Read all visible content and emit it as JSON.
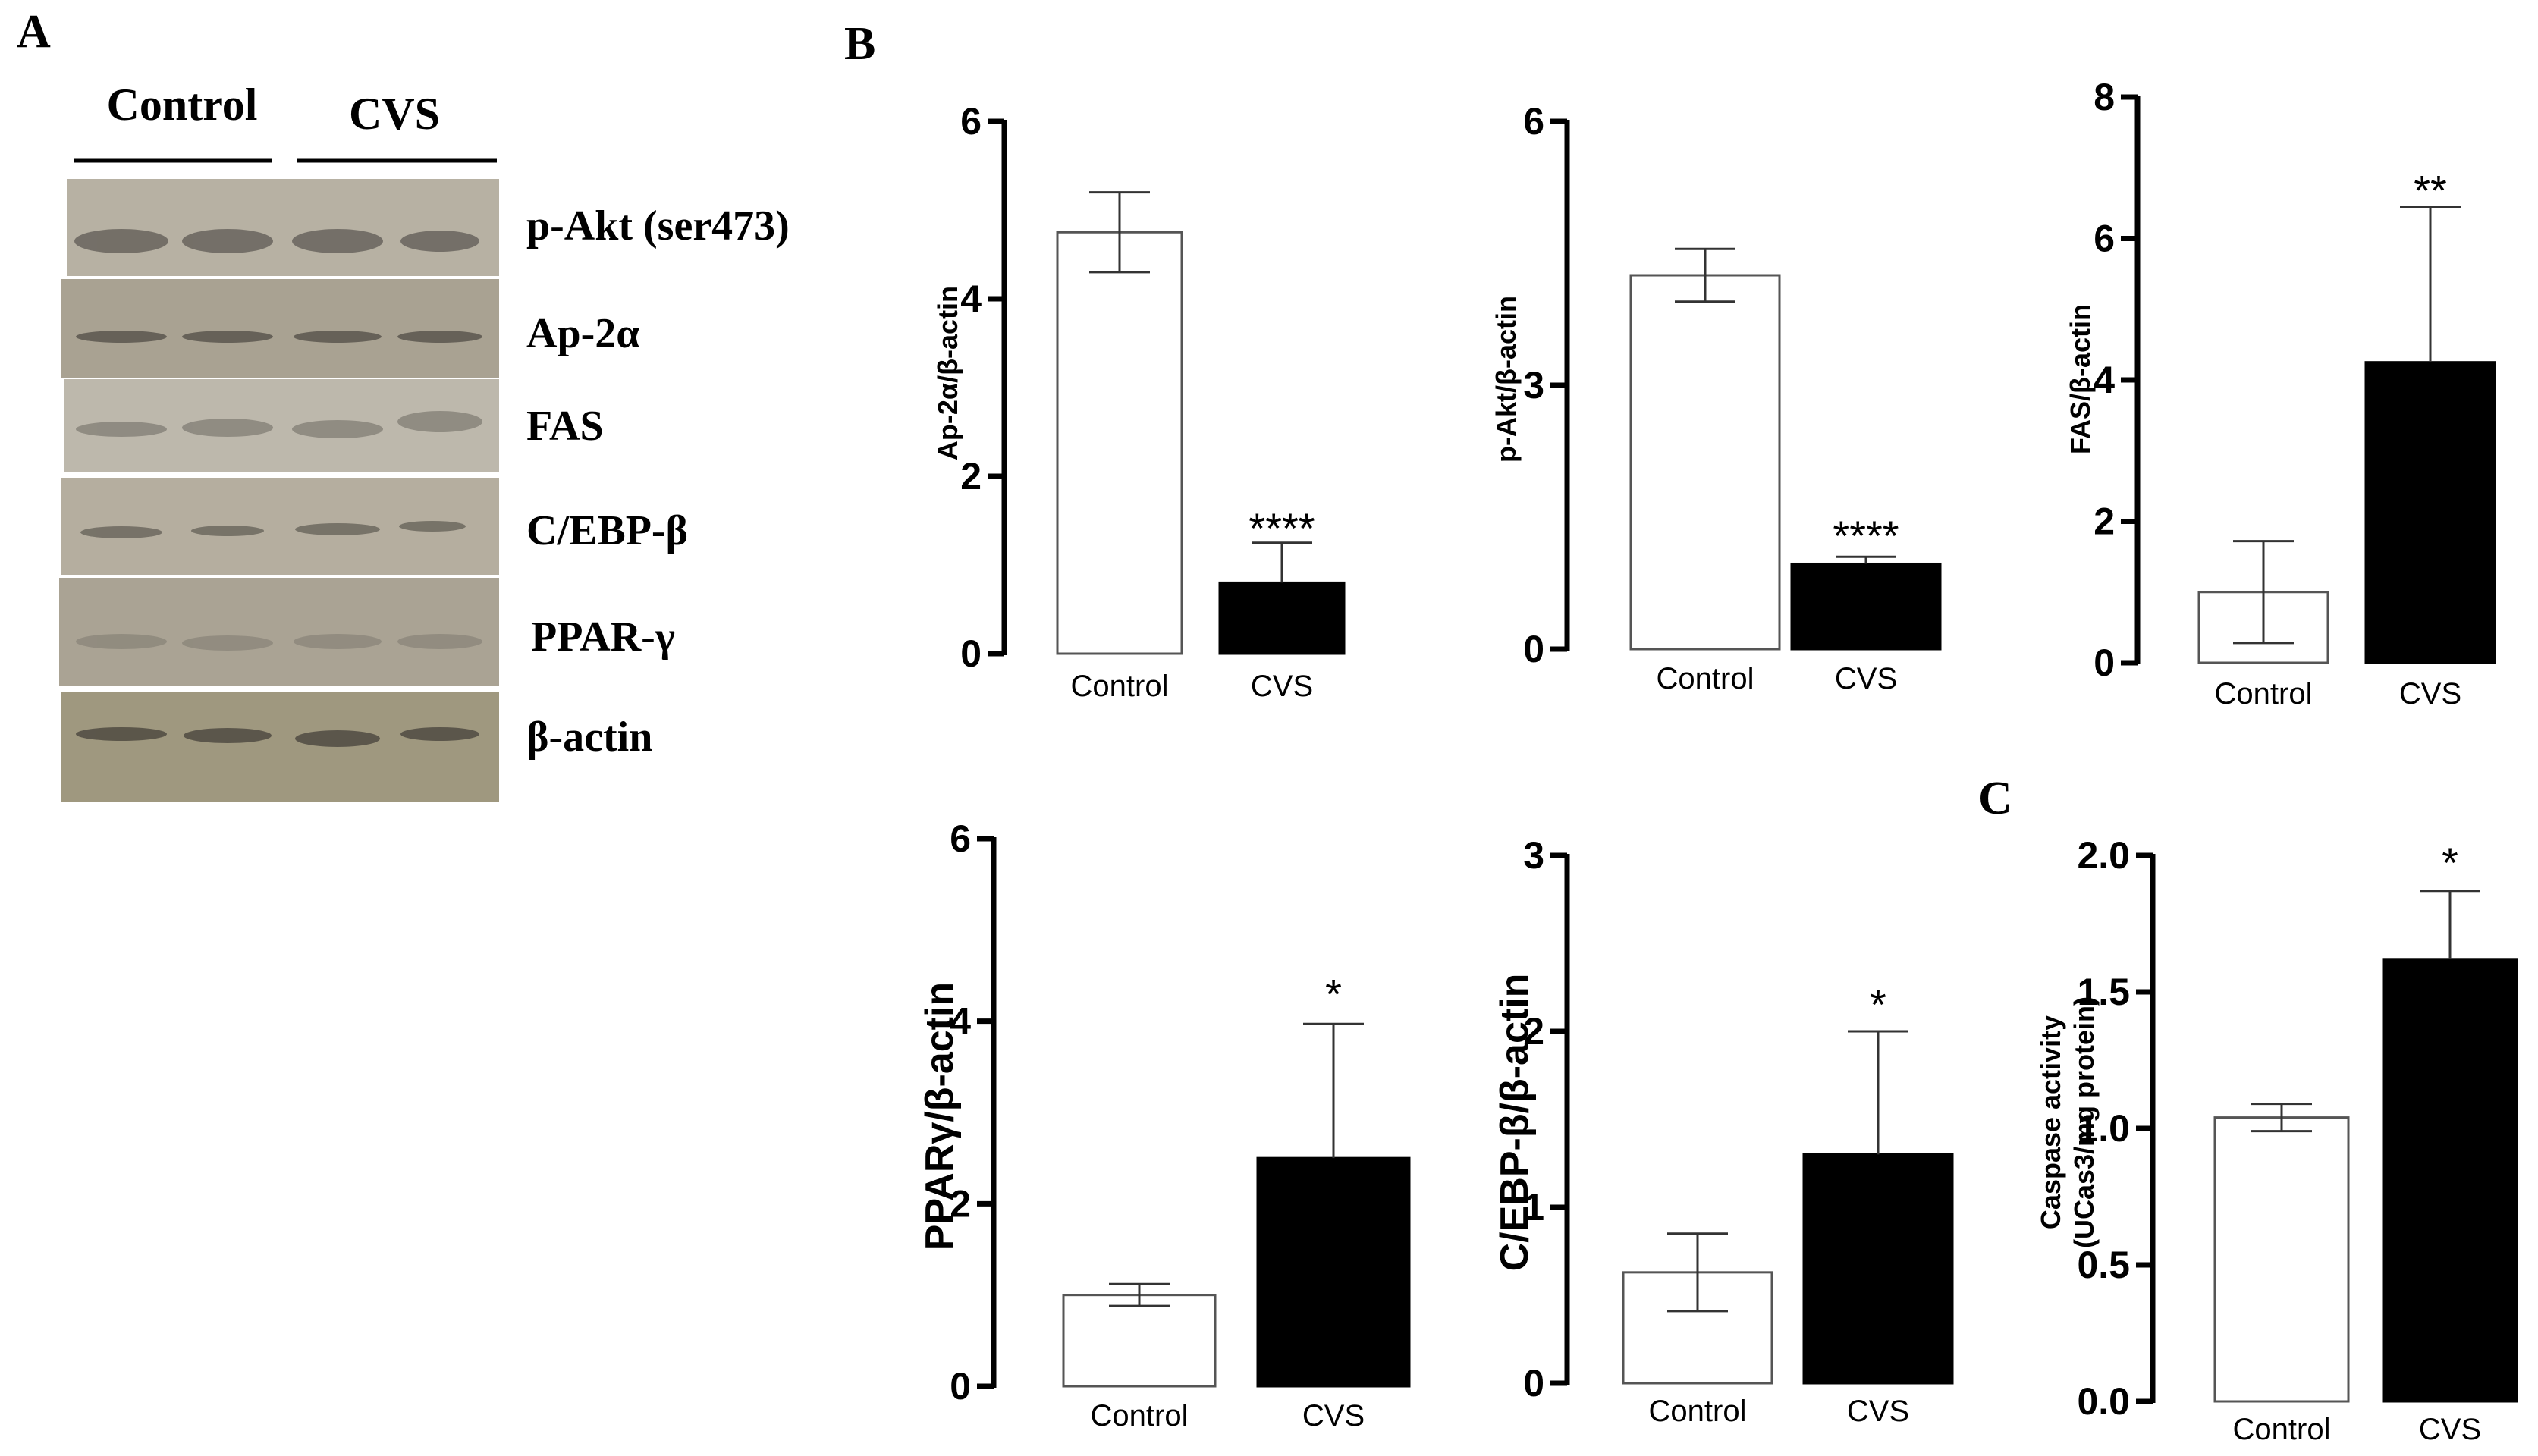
{
  "panels": {
    "a": "A",
    "b": "B",
    "c": "C"
  },
  "western_blot": {
    "groups": [
      "Control",
      "CVS"
    ],
    "lanes_per_group": 2,
    "bands": [
      {
        "label": "p-Akt (ser473)"
      },
      {
        "label": "Ap-2α"
      },
      {
        "label": "FAS"
      },
      {
        "label": "C/EBP-β"
      },
      {
        "label": "PPAR-γ"
      },
      {
        "label": "β-actin"
      }
    ]
  },
  "chart_data": [
    {
      "type": "bar",
      "panel": "B",
      "ylabel": "Ap-2α/β-actin",
      "categories": [
        "Control",
        "CVS"
      ],
      "values": [
        4.75,
        0.8
      ],
      "errors": [
        0.45,
        0.45
      ],
      "ylim": [
        0,
        6
      ],
      "yticks": [
        0,
        2,
        4,
        6
      ],
      "tick_labels": [
        "0",
        "2",
        "4",
        "6"
      ],
      "significance": "****",
      "colors": [
        "#ffffff",
        "#000000"
      ]
    },
    {
      "type": "bar",
      "panel": "B",
      "ylabel": "p-Akt/β-actin",
      "categories": [
        "Control",
        "CVS"
      ],
      "values": [
        4.25,
        0.97
      ],
      "errors": [
        0.3,
        0.08
      ],
      "ylim": [
        0,
        6
      ],
      "yticks": [
        0,
        3,
        6
      ],
      "tick_labels": [
        "0",
        "3",
        "6"
      ],
      "significance": "****",
      "colors": [
        "#ffffff",
        "#000000"
      ]
    },
    {
      "type": "bar",
      "panel": "B",
      "ylabel": "FAS/β-actin",
      "categories": [
        "Control",
        "CVS"
      ],
      "values": [
        1.0,
        4.25
      ],
      "errors": [
        0.72,
        2.2
      ],
      "ylim": [
        0,
        8
      ],
      "yticks": [
        0,
        2,
        4,
        6,
        8
      ],
      "tick_labels": [
        "0",
        "2",
        "4",
        "6",
        "8"
      ],
      "significance": "**",
      "colors": [
        "#ffffff",
        "#000000"
      ]
    },
    {
      "type": "bar",
      "panel": "B",
      "ylabel": "PPARγ/β-actin",
      "categories": [
        "Control",
        "CVS"
      ],
      "values": [
        1.0,
        2.5
      ],
      "errors": [
        0.12,
        1.47
      ],
      "ylim": [
        0,
        6
      ],
      "yticks": [
        0,
        2,
        4,
        6
      ],
      "tick_labels": [
        "0",
        "2",
        "4",
        "6"
      ],
      "significance": "*",
      "colors": [
        "#ffffff",
        "#000000"
      ]
    },
    {
      "type": "bar",
      "panel": "B",
      "ylabel": "C/EBP-β/β-actin",
      "categories": [
        "Control",
        "CVS"
      ],
      "values": [
        0.63,
        1.3
      ],
      "errors": [
        0.22,
        0.7
      ],
      "ylim": [
        0,
        3
      ],
      "yticks": [
        0,
        1,
        2,
        3
      ],
      "tick_labels": [
        "0",
        "1",
        "2",
        "3"
      ],
      "significance": "*",
      "colors": [
        "#ffffff",
        "#000000"
      ]
    },
    {
      "type": "bar",
      "panel": "C",
      "ylabel": "Caspase activity",
      "ylabel2": "(UCas3/mg protein)",
      "categories": [
        "Control",
        "CVS"
      ],
      "values": [
        1.04,
        1.62
      ],
      "errors": [
        0.05,
        0.25
      ],
      "ylim": [
        0,
        2
      ],
      "yticks": [
        0,
        0.5,
        1,
        1.5,
        2
      ],
      "tick_labels": [
        "0.0",
        "0.5",
        "1.0",
        "1.5",
        "2.0"
      ],
      "significance": "*",
      "colors": [
        "#ffffff",
        "#000000"
      ]
    }
  ]
}
